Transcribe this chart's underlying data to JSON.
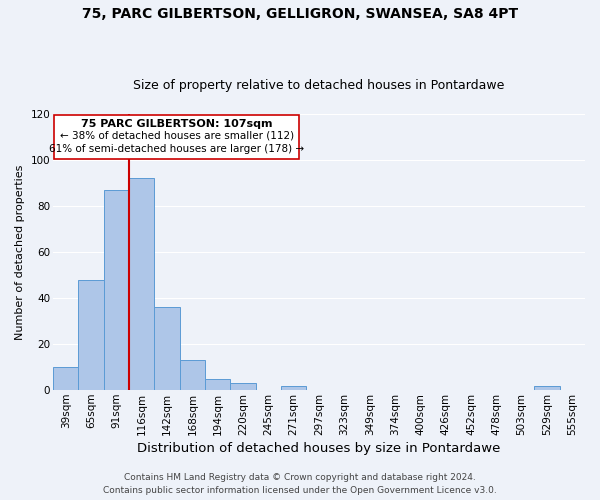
{
  "title": "75, PARC GILBERTSON, GELLIGRON, SWANSEA, SA8 4PT",
  "subtitle": "Size of property relative to detached houses in Pontardawe",
  "xlabel": "Distribution of detached houses by size in Pontardawe",
  "ylabel": "Number of detached properties",
  "bar_labels": [
    "39sqm",
    "65sqm",
    "91sqm",
    "116sqm",
    "142sqm",
    "168sqm",
    "194sqm",
    "220sqm",
    "245sqm",
    "271sqm",
    "297sqm",
    "323sqm",
    "349sqm",
    "374sqm",
    "400sqm",
    "426sqm",
    "452sqm",
    "478sqm",
    "503sqm",
    "529sqm",
    "555sqm"
  ],
  "bar_values": [
    10,
    48,
    87,
    92,
    36,
    13,
    5,
    3,
    0,
    2,
    0,
    0,
    0,
    0,
    0,
    0,
    0,
    0,
    0,
    2,
    0
  ],
  "bar_color": "#aec6e8",
  "bar_edge_color": "#5b9bd5",
  "vline_color": "#cc0000",
  "vline_index": 3,
  "ylim": [
    0,
    120
  ],
  "yticks": [
    0,
    20,
    40,
    60,
    80,
    100,
    120
  ],
  "annotation_title": "75 PARC GILBERTSON: 107sqm",
  "annotation_line1": "← 38% of detached houses are smaller (112)",
  "annotation_line2": "61% of semi-detached houses are larger (178) →",
  "annotation_box_color": "#ffffff",
  "annotation_box_edge": "#cc0000",
  "footer1": "Contains HM Land Registry data © Crown copyright and database right 2024.",
  "footer2": "Contains public sector information licensed under the Open Government Licence v3.0.",
  "background_color": "#eef2f9",
  "grid_color": "#ffffff",
  "title_fontsize": 10,
  "subtitle_fontsize": 9,
  "xlabel_fontsize": 9,
  "ylabel_fontsize": 8,
  "tick_fontsize": 7.5,
  "footer_fontsize": 6.5
}
